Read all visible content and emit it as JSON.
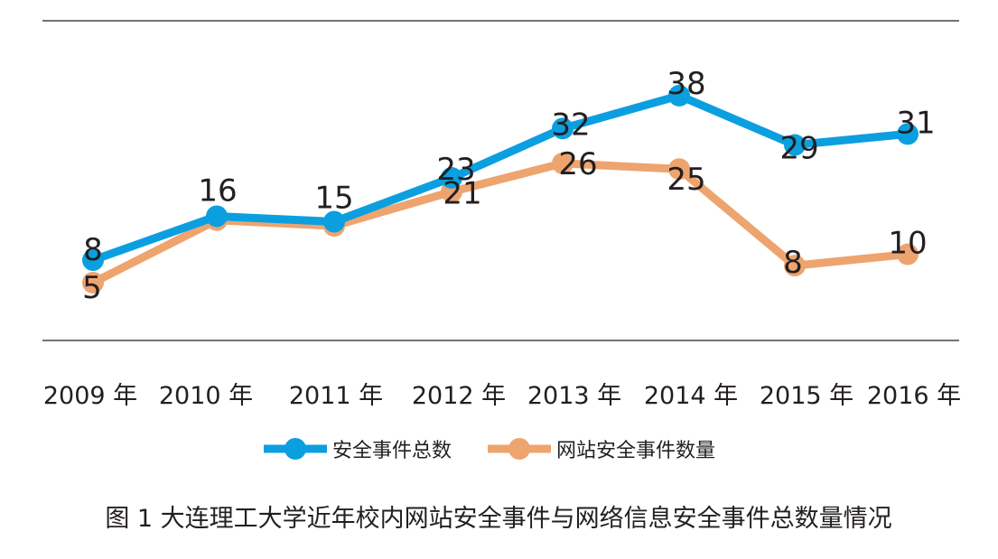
{
  "chart_data": {
    "type": "line",
    "categories": [
      "2009 年",
      "2010 年",
      "2011 年",
      "2012 年",
      "2013 年",
      "2014 年",
      "2015 年",
      "2016 年"
    ],
    "series": [
      {
        "name": "安全事件总数",
        "color": "#0b9fe0",
        "values": [
          8,
          16,
          15,
          23,
          32,
          38,
          29,
          31
        ],
        "labels_shown": [
          true,
          true,
          true,
          true,
          true,
          true,
          true,
          true
        ]
      },
      {
        "name": "网站安全事件数量",
        "color": "#eea46e",
        "values": [
          5,
          16,
          15,
          21,
          26,
          25,
          8,
          10
        ],
        "labels_shown": [
          true,
          false,
          false,
          true,
          true,
          true,
          true,
          true
        ]
      }
    ],
    "title": "图 1  大连理工大学近年校内网站安全事件与网络信息安全事件总数量情况",
    "xlabel": "",
    "ylabel": "",
    "grid": false,
    "legend": "bottom-center"
  }
}
